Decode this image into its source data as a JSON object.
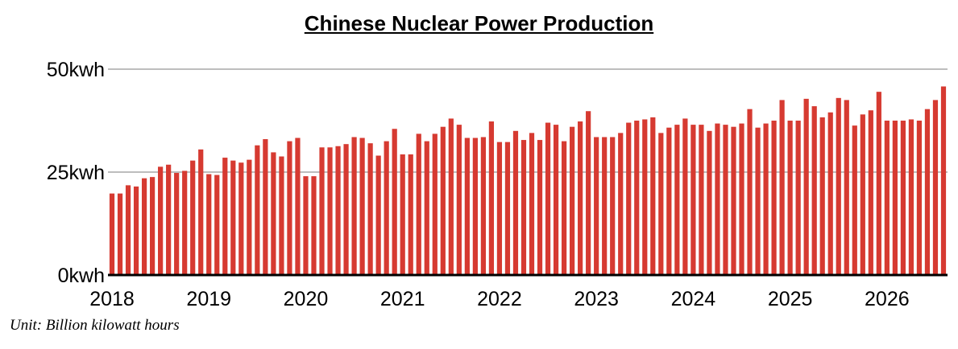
{
  "chart_data": {
    "type": "bar",
    "title": "Chinese Nuclear Power Production",
    "unit_note": "Unit: Billion kilowatt hours",
    "ylim": [
      0,
      50
    ],
    "y_ticks": [
      {
        "value": 0,
        "label": "0kwh"
      },
      {
        "value": 25,
        "label": "25kwh"
      },
      {
        "value": 50,
        "label": "50kwh"
      }
    ],
    "x_ticks": [
      {
        "index": 0,
        "label": "2018"
      },
      {
        "index": 12,
        "label": "2019"
      },
      {
        "index": 24,
        "label": "2020"
      },
      {
        "index": 36,
        "label": "2021"
      },
      {
        "index": 48,
        "label": "2022"
      },
      {
        "index": 60,
        "label": "2023"
      },
      {
        "index": 72,
        "label": "2024"
      },
      {
        "index": 84,
        "label": "2025"
      },
      {
        "index": 96,
        "label": "2026"
      }
    ],
    "grid": true,
    "bar_color": "#d63a31",
    "grid_color": "#bdbdbd",
    "values": [
      19.8,
      19.8,
      21.8,
      21.5,
      23.5,
      23.8,
      26.3,
      26.8,
      24.8,
      25.3,
      27.8,
      30.5,
      24.5,
      24.3,
      28.5,
      27.8,
      27.3,
      28.0,
      31.5,
      33.0,
      29.8,
      28.8,
      32.5,
      33.3,
      24.0,
      24.0,
      31.0,
      31.0,
      31.3,
      31.8,
      33.5,
      33.3,
      32.0,
      29.0,
      32.5,
      35.5,
      29.3,
      29.3,
      34.3,
      32.5,
      34.3,
      36.0,
      38.0,
      36.5,
      33.3,
      33.3,
      33.5,
      37.3,
      32.3,
      32.3,
      35.0,
      32.8,
      34.5,
      32.8,
      37.0,
      36.5,
      32.5,
      36.0,
      37.3,
      39.8,
      33.5,
      33.5,
      33.5,
      34.5,
      37.0,
      37.5,
      37.8,
      38.3,
      34.5,
      35.8,
      36.5,
      38.0,
      36.5,
      36.5,
      35.0,
      36.8,
      36.5,
      36.0,
      36.8,
      40.3,
      35.8,
      36.8,
      37.5,
      42.5,
      37.5,
      37.5,
      42.8,
      41.0,
      38.3,
      39.5,
      43.0,
      42.5,
      36.3,
      39.0,
      40.0,
      44.5,
      37.5,
      37.5,
      37.5,
      37.8,
      37.5,
      40.3,
      42.5,
      45.8
    ]
  }
}
